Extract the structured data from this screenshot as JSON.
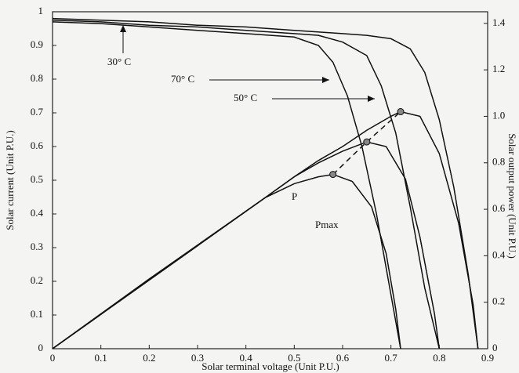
{
  "chart_data": {
    "type": "line",
    "x_label": "Solar terminal voltage (Unit P.U.)",
    "y_label": "Solar current (Unit P.U.)",
    "y2_label": "Solar output power (Unit P.U.)",
    "xlim": [
      0,
      0.9
    ],
    "xticks": [
      0,
      0.1,
      0.2,
      0.3,
      0.4,
      0.5,
      0.6,
      0.7,
      0.8,
      0.9
    ],
    "ylim": [
      0,
      1
    ],
    "yticks": [
      0,
      0.1,
      0.2,
      0.3,
      0.4,
      0.5,
      0.6,
      0.7,
      0.8,
      0.9,
      1
    ],
    "y2lim": [
      0,
      1.45
    ],
    "y2ticks": [
      0,
      0.2,
      0.4,
      0.6,
      0.8,
      {
        "value": 1.0,
        "label": "1.0"
      },
      1.2,
      1.4
    ],
    "grid": false,
    "series": [
      {
        "name": "30° C",
        "color": "#111111",
        "x": [
          0,
          0.1,
          0.2,
          0.3,
          0.4,
          0.5,
          0.6,
          0.65,
          0.7,
          0.74,
          0.77,
          0.8,
          0.83,
          0.86,
          0.88
        ],
        "values": [
          0.98,
          0.975,
          0.97,
          0.96,
          0.955,
          0.945,
          0.935,
          0.93,
          0.92,
          0.89,
          0.82,
          0.68,
          0.48,
          0.22,
          0
        ]
      },
      {
        "name": "50° C",
        "color": "#111111",
        "x": [
          0,
          0.1,
          0.2,
          0.3,
          0.4,
          0.5,
          0.55,
          0.6,
          0.65,
          0.68,
          0.71,
          0.74,
          0.77,
          0.8
        ],
        "values": [
          0.975,
          0.97,
          0.96,
          0.955,
          0.945,
          0.935,
          0.93,
          0.91,
          0.87,
          0.78,
          0.64,
          0.42,
          0.18,
          0
        ]
      },
      {
        "name": "70° C",
        "color": "#111111",
        "x": [
          0,
          0.1,
          0.2,
          0.3,
          0.4,
          0.5,
          0.55,
          0.58,
          0.61,
          0.64,
          0.67,
          0.7,
          0.72
        ],
        "values": [
          0.97,
          0.965,
          0.955,
          0.945,
          0.935,
          0.925,
          0.9,
          0.85,
          0.75,
          0.6,
          0.4,
          0.16,
          0
        ]
      },
      {
        "axis": "y2",
        "color": "#111111",
        "x": [
          0,
          0.44,
          0.5,
          0.55,
          0.6,
          0.65,
          0.7,
          0.72,
          0.76,
          0.8,
          0.84,
          0.87,
          0.88
        ],
        "values": [
          0,
          0.65,
          0.74,
          0.81,
          0.87,
          0.94,
          1.0,
          1.02,
          1.0,
          0.84,
          0.54,
          0.19,
          0
        ]
      },
      {
        "axis": "y2",
        "color": "#111111",
        "x": [
          0,
          0.44,
          0.5,
          0.55,
          0.6,
          0.65,
          0.69,
          0.73,
          0.76,
          0.79,
          0.8
        ],
        "values": [
          0,
          0.65,
          0.74,
          0.8,
          0.85,
          0.89,
          0.87,
          0.73,
          0.48,
          0.15,
          0
        ]
      },
      {
        "axis": "y2",
        "color": "#111111",
        "x": [
          0,
          0.2,
          0.44,
          0.5,
          0.55,
          0.58,
          0.62,
          0.66,
          0.69,
          0.71,
          0.72
        ],
        "values": [
          0,
          0.3,
          0.65,
          0.71,
          0.74,
          0.75,
          0.72,
          0.61,
          0.41,
          0.17,
          0
        ]
      },
      {
        "axis": "y2",
        "color": "#111111",
        "dash": true,
        "markers": true,
        "x": [
          0.58,
          0.65,
          0.72
        ],
        "values": [
          0.75,
          0.89,
          1.02
        ]
      }
    ],
    "annotations": [
      "P",
      "Pmax"
    ]
  }
}
